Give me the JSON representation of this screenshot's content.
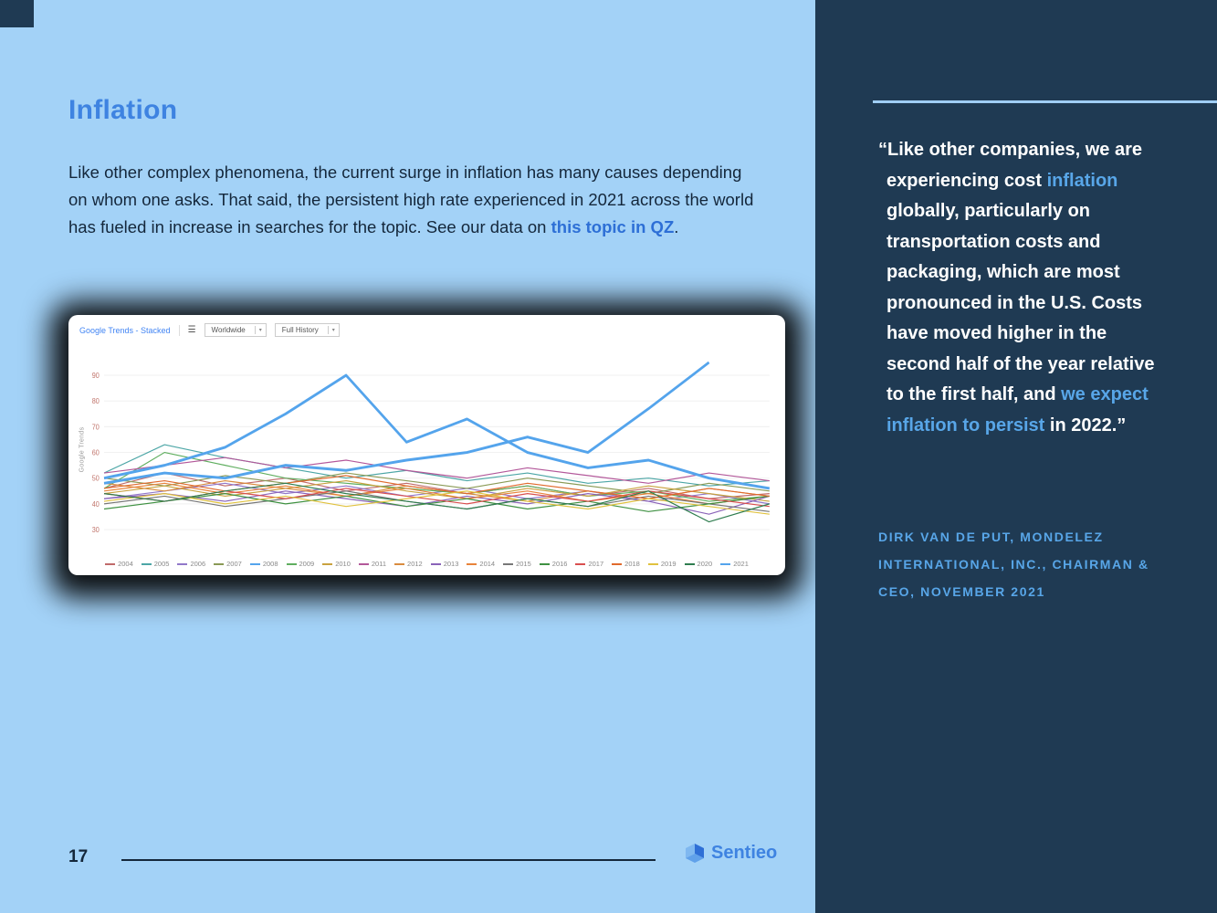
{
  "colors": {
    "left_bg": "#A3D2F7",
    "right_bg": "#1F3A53",
    "heading": "#3E83E1",
    "link": "#2D6FD6",
    "accent": "#58A6E8",
    "text_dark": "#14273B"
  },
  "page": {
    "number": "17",
    "brand": "Sentieo"
  },
  "left": {
    "title": "Inflation",
    "body_segments": [
      {
        "text": "Like other complex phenomena, the current surge in inflation has many causes depending on whom one asks. That said, the persistent high rate experienced in 2021 across the world has fueled in increase in searches for the topic. See our data on ",
        "style": "normal"
      },
      {
        "text": "this topic in QZ",
        "style": "link"
      },
      {
        "text": ".",
        "style": "normal"
      }
    ]
  },
  "chart": {
    "header": {
      "title": "Google Trends - Stacked",
      "hamburger_icon": "menu-icon",
      "region_select": "Worldwide",
      "range_select": "Full History"
    }
  },
  "chart_data": {
    "type": "line",
    "title": "Google Trends - Stacked",
    "xlabel": "",
    "ylabel": "Google Trends",
    "x_axis": "Jan–Dec (each series is one year, Google Trends stacked view)",
    "ylim": [
      25,
      100
    ],
    "yticks": [
      30,
      40,
      50,
      60,
      70,
      80,
      90
    ],
    "grid": false,
    "legend_position": "bottom",
    "series": [
      {
        "name": "2004",
        "color": "#c06a6a",
        "width": 1,
        "values": [
          46,
          52,
          47,
          50,
          45,
          48,
          44,
          47,
          43,
          46,
          42,
          44
        ]
      },
      {
        "name": "2005",
        "color": "#4ca6a6",
        "width": 1,
        "values": [
          52,
          63,
          58,
          54,
          50,
          53,
          49,
          52,
          48,
          50,
          47,
          49
        ]
      },
      {
        "name": "2006",
        "color": "#9178c9",
        "width": 1,
        "values": [
          42,
          45,
          48,
          44,
          47,
          43,
          46,
          42,
          45,
          41,
          44,
          40
        ]
      },
      {
        "name": "2007",
        "color": "#8a9a55",
        "width": 1,
        "values": [
          50,
          47,
          51,
          48,
          52,
          49,
          46,
          50,
          47,
          44,
          48,
          45
        ]
      },
      {
        "name": "2008",
        "color": "#54a4ec",
        "width": 2.5,
        "values": [
          50,
          55,
          62,
          75,
          90,
          64,
          73,
          60,
          54,
          57,
          50,
          46
        ]
      },
      {
        "name": "2009",
        "color": "#5fae5f",
        "width": 1,
        "values": [
          46,
          60,
          55,
          50,
          48,
          46,
          44,
          47,
          43,
          45,
          41,
          43
        ]
      },
      {
        "name": "2010",
        "color": "#c9a23f",
        "width": 1,
        "values": [
          44,
          47,
          43,
          46,
          49,
          45,
          42,
          46,
          43,
          47,
          44,
          41
        ]
      },
      {
        "name": "2011",
        "color": "#b3589a",
        "width": 1,
        "values": [
          52,
          55,
          58,
          54,
          57,
          53,
          50,
          54,
          51,
          48,
          52,
          49
        ]
      },
      {
        "name": "2012",
        "color": "#d98c3f",
        "width": 1,
        "values": [
          48,
          45,
          49,
          46,
          43,
          47,
          44,
          41,
          45,
          42,
          46,
          43
        ]
      },
      {
        "name": "2013",
        "color": "#8a63b8",
        "width": 1,
        "values": [
          42,
          44,
          41,
          45,
          42,
          39,
          43,
          40,
          44,
          41,
          36,
          43
        ]
      },
      {
        "name": "2014",
        "color": "#e8833a",
        "width": 1,
        "values": [
          45,
          48,
          44,
          47,
          43,
          46,
          42,
          45,
          41,
          44,
          40,
          43
        ]
      },
      {
        "name": "2015",
        "color": "#777777",
        "width": 1,
        "values": [
          40,
          43,
          39,
          42,
          45,
          41,
          38,
          42,
          39,
          43,
          40,
          37
        ]
      },
      {
        "name": "2016",
        "color": "#3f9142",
        "width": 1,
        "values": [
          38,
          41,
          44,
          40,
          43,
          39,
          42,
          38,
          41,
          37,
          40,
          43
        ]
      },
      {
        "name": "2017",
        "color": "#d94f4f",
        "width": 1,
        "values": [
          44,
          41,
          45,
          42,
          46,
          43,
          40,
          44,
          41,
          45,
          42,
          39
        ]
      },
      {
        "name": "2018",
        "color": "#e06a2d",
        "width": 1,
        "values": [
          46,
          49,
          45,
          48,
          51,
          47,
          44,
          48,
          45,
          42,
          46,
          43
        ]
      },
      {
        "name": "2019",
        "color": "#e0c23f",
        "width": 1,
        "values": [
          41,
          44,
          40,
          43,
          39,
          42,
          45,
          41,
          38,
          42,
          39,
          36
        ]
      },
      {
        "name": "2020",
        "color": "#2f7d4f",
        "width": 1,
        "values": [
          44,
          41,
          45,
          48,
          44,
          41,
          38,
          42,
          39,
          45,
          33,
          40
        ]
      },
      {
        "name": "2021",
        "color": "#54a4ec",
        "width": 2.5,
        "values": [
          48,
          52,
          50,
          55,
          53,
          57,
          60,
          66,
          60,
          77,
          95
        ]
      }
    ]
  },
  "quote": {
    "segments": [
      {
        "text": "“Like other companies, we are experiencing cost ",
        "style": "normal"
      },
      {
        "text": "inflation",
        "style": "accent"
      },
      {
        "text": " globally, particularly on transportation costs and packaging, which are most pronounced in the U.S. Costs have moved higher in the second half of the year relative to the first half, and ",
        "style": "normal"
      },
      {
        "text": "we expect inflation to persist",
        "style": "accent"
      },
      {
        "text": " in 2022.”",
        "style": "normal"
      }
    ],
    "attribution": "DIRK VAN DE PUT, MONDELEZ INTERNATIONAL, INC., CHAIRMAN & CEO, NOVEMBER 2021"
  }
}
